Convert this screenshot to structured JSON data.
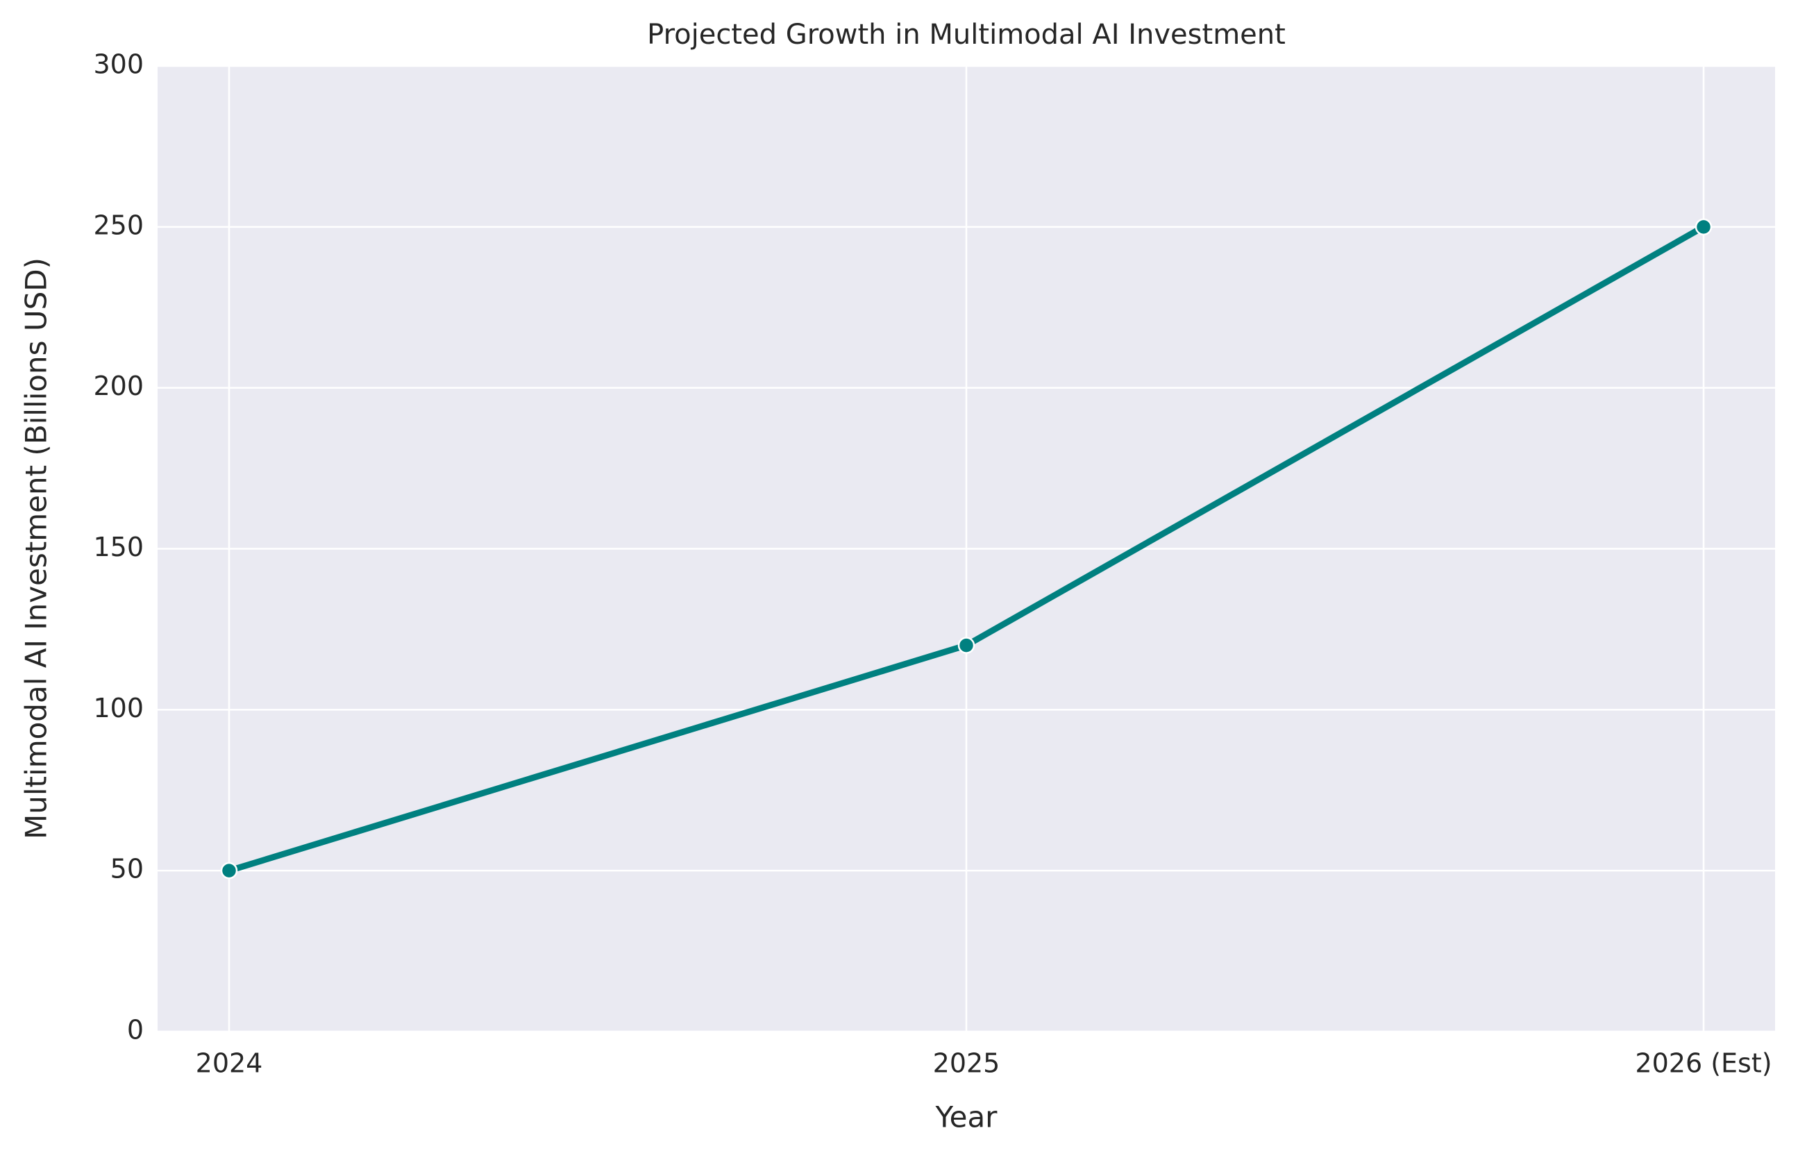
{
  "chart_data": {
    "type": "line",
    "title": "Projected Growth in Multimodal AI Investment",
    "x_label": "Year",
    "y_label": "Multimodal AI Investment (Billions USD)",
    "categories": [
      "2024",
      "2025",
      "2026 (Est)"
    ],
    "values": [
      50,
      120,
      250
    ],
    "color": "#008080",
    "ylim": [
      0,
      300
    ],
    "yticks": [
      0,
      50,
      100,
      150,
      200,
      250,
      300
    ],
    "grid": true
  }
}
